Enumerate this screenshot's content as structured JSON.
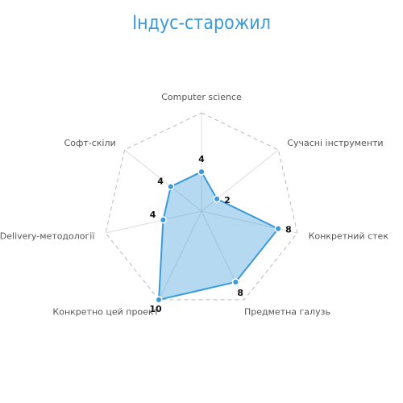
{
  "chart_data": {
    "type": "radar",
    "title": "Індус-старожил",
    "categories": [
      "Computer science",
      "Сучасні інструменти",
      "Конкретний стек",
      "Предметна галузь",
      "Конкретно цей проект",
      "Delivery-методології",
      "Софт-скіли"
    ],
    "series": [
      {
        "values": [
          4,
          2,
          8,
          8,
          10,
          4,
          4
        ]
      }
    ],
    "rlim": [
      0,
      10
    ],
    "grid": true,
    "colors": {
      "line": "#3a9ad9",
      "fill": "#3a9ad9",
      "grid_outer": "#bbbbbb",
      "grid_spoke": "#dddddd",
      "title": "#3a9ad9"
    }
  }
}
